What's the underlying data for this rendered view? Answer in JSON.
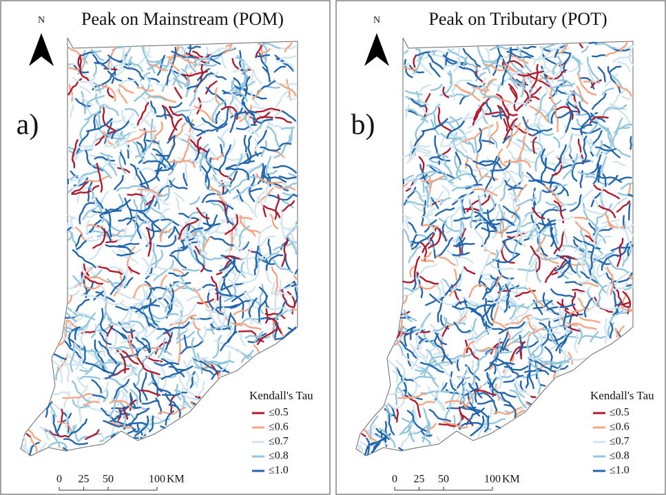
{
  "panels": [
    {
      "label": "a)",
      "title": "Peak on Mainstream (POM)",
      "north": "N",
      "legend": {
        "title": "Kendall's Tau",
        "items": [
          {
            "label": "≤0.5",
            "color": "#b2182b"
          },
          {
            "label": "≤0.6",
            "color": "#f4a582"
          },
          {
            "label": "≤0.7",
            "color": "#d1e5f0"
          },
          {
            "label": "≤0.8",
            "color": "#92c5de"
          },
          {
            "label": "≤1.0",
            "color": "#2166ac"
          }
        ]
      },
      "scale": {
        "ticks": [
          0,
          25,
          50,
          100
        ],
        "unit": "KM"
      }
    },
    {
      "label": "b)",
      "title": "Peak on Tributary (POT)",
      "north": "N",
      "legend": {
        "title": "Kendall's Tau",
        "items": [
          {
            "label": "≤0.5",
            "color": "#b2182b"
          },
          {
            "label": "≤0.6",
            "color": "#f4a582"
          },
          {
            "label": "≤0.7",
            "color": "#d1e5f0"
          },
          {
            "label": "≤0.8",
            "color": "#92c5de"
          },
          {
            "label": "≤1.0",
            "color": "#2166ac"
          }
        ]
      },
      "scale": {
        "ticks": [
          0,
          25,
          50,
          100
        ],
        "unit": "KM"
      }
    }
  ]
}
